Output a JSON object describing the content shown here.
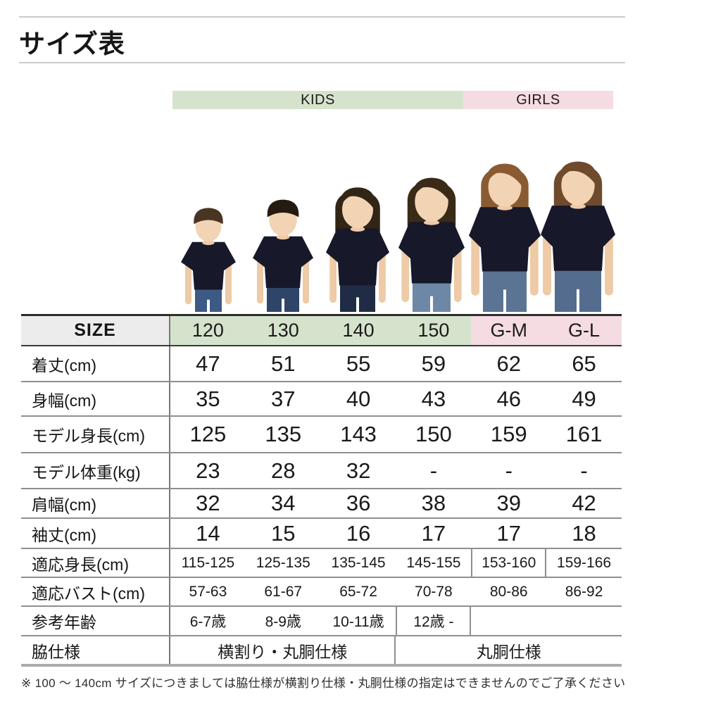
{
  "page": {
    "title": "サイズ表",
    "footnote": "※ 100 ～ 140cm サイズにつきましては脇仕様が横割り仕様・丸胴仕様の指定はできませんのでご了承ください"
  },
  "groups": {
    "kids": {
      "label": "KIDS",
      "color": "#d5e3cd"
    },
    "girls": {
      "label": "GIRLS",
      "color": "#f5dce2"
    }
  },
  "table": {
    "size_label": "SIZE",
    "columns": [
      {
        "label": "120",
        "group": "kids"
      },
      {
        "label": "130",
        "group": "kids"
      },
      {
        "label": "140",
        "group": "kids"
      },
      {
        "label": "150",
        "group": "kids"
      },
      {
        "label": "G-M",
        "group": "girls"
      },
      {
        "label": "G-L",
        "group": "girls"
      }
    ],
    "rows": [
      {
        "label": "着丈(cm)",
        "size": "lg",
        "cells": [
          {
            "v": "47"
          },
          {
            "v": "51"
          },
          {
            "v": "55"
          },
          {
            "v": "59"
          },
          {
            "v": "62"
          },
          {
            "v": "65"
          }
        ]
      },
      {
        "label": "身幅(cm)",
        "size": "lg",
        "cells": [
          {
            "v": "35"
          },
          {
            "v": "37"
          },
          {
            "v": "40"
          },
          {
            "v": "43"
          },
          {
            "v": "46"
          },
          {
            "v": "49"
          }
        ]
      },
      {
        "label": "モデル身長(cm)",
        "size": "lg",
        "cells": [
          {
            "v": "125"
          },
          {
            "v": "135"
          },
          {
            "v": "143"
          },
          {
            "v": "150"
          },
          {
            "v": "159"
          },
          {
            "v": "161"
          }
        ]
      },
      {
        "label": "モデル体重(kg)",
        "size": "lg",
        "cells": [
          {
            "v": "23"
          },
          {
            "v": "28"
          },
          {
            "v": "32"
          },
          {
            "v": "-"
          },
          {
            "v": "-"
          },
          {
            "v": "-"
          }
        ]
      },
      {
        "label": "肩幅(cm)",
        "size": "lg",
        "cells": [
          {
            "v": "32"
          },
          {
            "v": "34"
          },
          {
            "v": "36"
          },
          {
            "v": "38"
          },
          {
            "v": "39"
          },
          {
            "v": "42"
          }
        ]
      },
      {
        "label": "袖丈(cm)",
        "size": "lg",
        "cells": [
          {
            "v": "14"
          },
          {
            "v": "15"
          },
          {
            "v": "16"
          },
          {
            "v": "17"
          },
          {
            "v": "17"
          },
          {
            "v": "18"
          }
        ]
      },
      {
        "label": "適応身長(cm)",
        "size": "sm",
        "cells": [
          {
            "v": "115-125"
          },
          {
            "v": "125-135"
          },
          {
            "v": "135-145"
          },
          {
            "v": "145-155"
          },
          {
            "v": "153-160",
            "borders": "lr"
          },
          {
            "v": "159-166"
          }
        ]
      },
      {
        "label": "適応バスト(cm)",
        "size": "sm",
        "cells": [
          {
            "v": "57-63"
          },
          {
            "v": "61-67"
          },
          {
            "v": "65-72"
          },
          {
            "v": "70-78"
          },
          {
            "v": "80-86"
          },
          {
            "v": "86-92"
          }
        ]
      },
      {
        "label": "参考年齢",
        "size": "sm",
        "cells": [
          {
            "v": "6-7歳"
          },
          {
            "v": "8-9歳"
          },
          {
            "v": "10-11歳"
          },
          {
            "v": "12歳 -",
            "borders": "lr"
          },
          {
            "v": "",
            "span": 2
          }
        ]
      },
      {
        "label": "脇仕様",
        "size": "md",
        "cells": [
          {
            "v": "横割り・丸胴仕様",
            "span": 3,
            "borders": "r"
          },
          {
            "v": "丸胴仕様",
            "span": 3
          }
        ]
      }
    ]
  }
}
